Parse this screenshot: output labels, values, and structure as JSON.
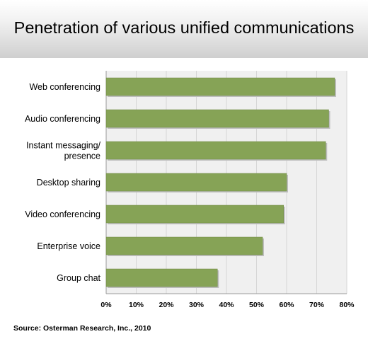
{
  "title": "Penetration of various unified communications",
  "source": "Source: Osterman Research, Inc., 2010",
  "colors": {
    "bar": "#86a356",
    "bar_edge": "#6f8a45",
    "plot_bg": "#f0f0f0",
    "grid": "#d6d6d6"
  },
  "chart_data": {
    "type": "bar",
    "orientation": "horizontal",
    "categories": [
      [
        "Web conferencing"
      ],
      [
        "Audio conferencing"
      ],
      [
        "Instant messaging/",
        "presence"
      ],
      [
        "Desktop sharing"
      ],
      [
        "Video conferencing"
      ],
      [
        "Enterprise voice"
      ],
      [
        "Group chat"
      ]
    ],
    "values": [
      76,
      74,
      73,
      60,
      59,
      52,
      37
    ],
    "xlim": [
      0,
      80
    ],
    "xticks": [
      "0%",
      "10%",
      "20%",
      "30%",
      "40%",
      "50%",
      "60%",
      "70%",
      "80%"
    ],
    "grid": true
  }
}
